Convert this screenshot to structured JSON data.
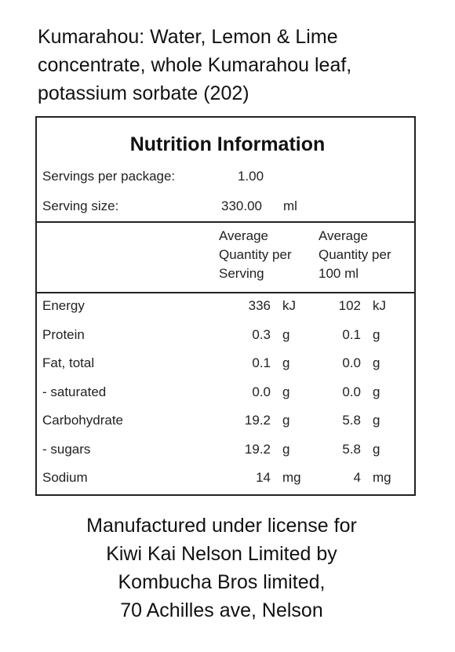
{
  "ingredients": [
    "Kumarahou: Water, Lemon & Lime",
    "concentrate, whole Kumarahou leaf,",
    "potassium sorbate (202)"
  ],
  "panel": {
    "title": "Nutrition Information",
    "servings": {
      "label": "Servings per package:",
      "value": "1.00"
    },
    "serving_size": {
      "label": "Serving size:",
      "value": "330.00",
      "unit": "ml"
    },
    "headers": [
      [
        "Average",
        "Quantity per",
        "Serving"
      ],
      [
        "Average",
        "Quantity per",
        "100 ml"
      ]
    ],
    "rows": [
      [
        "Energy",
        "336",
        "kJ",
        "102",
        "kJ"
      ],
      [
        "Protein",
        "0.3",
        "g",
        "0.1",
        "g"
      ],
      [
        "Fat, total",
        "0.1",
        "g",
        "0.0",
        "g"
      ],
      [
        "- saturated",
        "0.0",
        "g",
        "0.0",
        "g"
      ],
      [
        "Carbohydrate",
        "19.2",
        "g",
        "5.8",
        "g"
      ],
      [
        "- sugars",
        "19.2",
        "g",
        "5.8",
        "g"
      ],
      [
        "Sodium",
        "14",
        "mg",
        "4",
        "mg"
      ]
    ]
  },
  "footer": [
    "Manufactured under license for",
    "Kiwi Kai Nelson Limited by",
    "Kombucha Bros limited,",
    "70 Achilles ave, Nelson"
  ]
}
